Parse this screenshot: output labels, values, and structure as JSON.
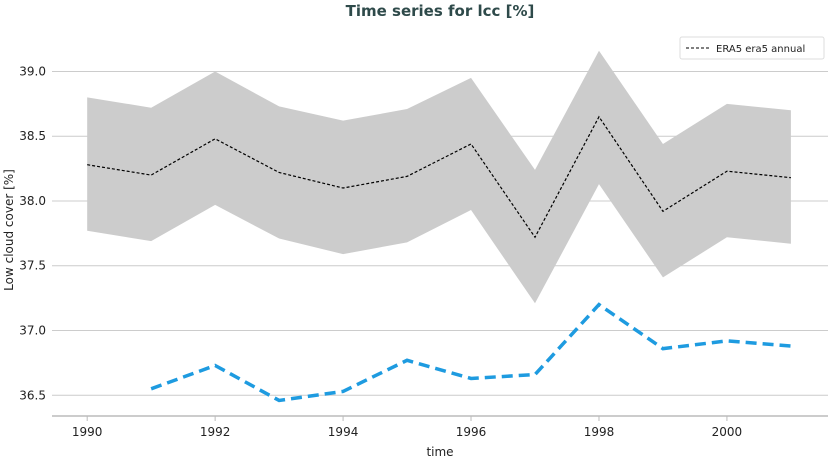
{
  "chart_data": {
    "type": "line",
    "title": "Time series for lcc [%]",
    "xlabel": "time",
    "ylabel": "Low cloud cover [%]",
    "xlim": [
      1989.45,
      2001.58
    ],
    "ylim": [
      36.34,
      39.32
    ],
    "xticks": [
      1990,
      1992,
      1994,
      1996,
      1998,
      2000
    ],
    "yticks": [
      "36.5",
      "37.0",
      "37.5",
      "38.0",
      "38.5",
      "39.0"
    ],
    "grid": "horizontal",
    "legend_placement": "top-right",
    "colors": {
      "title": "#2e4a4a",
      "band": "#cccccc",
      "mean": "#000000",
      "blue": "#1e9be0"
    },
    "band": {
      "x": [
        1990,
        1991,
        1992,
        1993,
        1994,
        1995,
        1996,
        1997,
        1998,
        1999,
        2000,
        2001
      ],
      "upper": [
        38.8,
        38.72,
        39.0,
        38.73,
        38.62,
        38.71,
        38.95,
        38.24,
        39.16,
        38.44,
        38.75,
        38.7
      ],
      "lower": [
        37.77,
        37.69,
        37.97,
        37.71,
        37.59,
        37.68,
        37.93,
        37.21,
        38.13,
        37.41,
        37.72,
        37.67
      ]
    },
    "series": [
      {
        "name": "ERA5 era5 annual",
        "style": "dashed",
        "x": [
          1990,
          1991,
          1992,
          1993,
          1994,
          1995,
          1996,
          1997,
          1998,
          1999,
          2000,
          2001
        ],
        "values": [
          38.28,
          38.2,
          38.48,
          38.22,
          38.1,
          38.19,
          38.44,
          37.72,
          38.65,
          37.92,
          38.23,
          38.18
        ]
      },
      {
        "style": "dashed-thick",
        "x": [
          1991,
          1992,
          1993,
          1994,
          1995,
          1996,
          1997,
          1998,
          1999,
          2000,
          2001
        ],
        "values": [
          36.55,
          36.73,
          36.46,
          36.53,
          36.77,
          36.63,
          36.66,
          37.2,
          36.86,
          36.92,
          36.88
        ]
      }
    ]
  }
}
